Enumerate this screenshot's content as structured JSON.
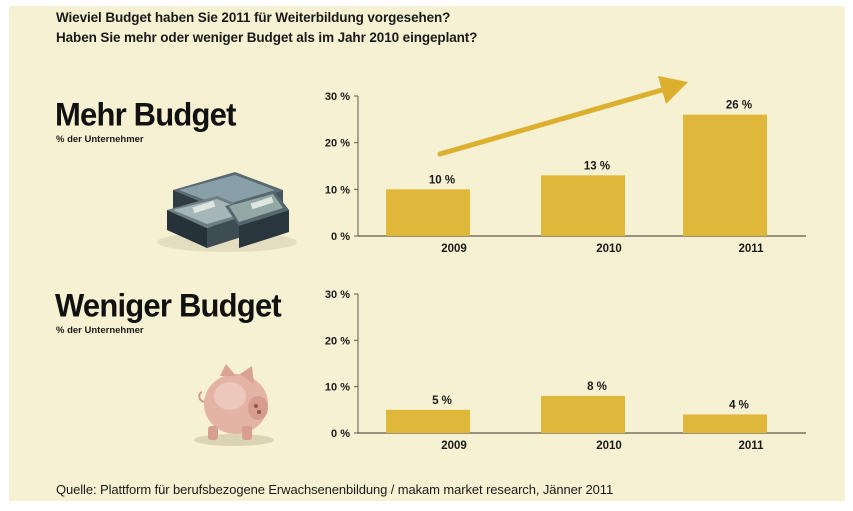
{
  "header": {
    "question_1": "Wieviel Budget haben Sie 2011 für Weiterbildung vorgesehen?",
    "question_2": "Haben Sie mehr oder weniger Budget als im Jahr 2010 eingeplant?"
  },
  "source": "Quelle: Plattform für berufsbezogene Erwachsenenbildung / makam market research, Jänner 2011",
  "colors": {
    "bar": "#dfb73a",
    "axis": "#5f5a4a",
    "arrow": "#dcb02e",
    "background": "#f6f1d2"
  },
  "icons": [
    "money-stack-icon",
    "piggy-bank-icon",
    "trend-arrow-icon"
  ],
  "chart_data": [
    {
      "type": "bar",
      "title": "Mehr Budget",
      "subtitle": "% der Unternehmer",
      "categories": [
        "2009",
        "2010",
        "2011"
      ],
      "values": [
        10,
        13,
        26
      ],
      "value_labels": [
        "10 %",
        "13 %",
        "26 %"
      ],
      "yticks": [
        0,
        10,
        20,
        30
      ],
      "ytick_labels": [
        "0 %",
        "10 %",
        "20 %",
        "30 %"
      ],
      "ylim": [
        0,
        30
      ],
      "grid": false,
      "annotation": "trend-arrow"
    },
    {
      "type": "bar",
      "title": "Weniger Budget",
      "subtitle": "% der Unternehmer",
      "categories": [
        "2009",
        "2010",
        "2011"
      ],
      "values": [
        5,
        8,
        4
      ],
      "value_labels": [
        "5 %",
        "8 %",
        "4 %"
      ],
      "yticks": [
        0,
        10,
        20,
        30
      ],
      "ytick_labels": [
        "0 %",
        "10 %",
        "20 %",
        "30 %"
      ],
      "ylim": [
        0,
        30
      ],
      "grid": false
    }
  ]
}
